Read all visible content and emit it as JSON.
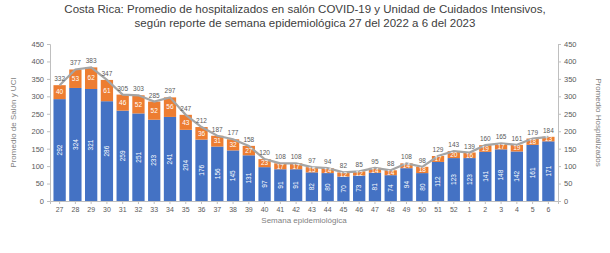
{
  "chart_data": {
    "type": "bar",
    "title": "Costa Rica: Promedio de hospitalizados en salón COVID-19 y Unidad de Cuidados Intensivos,\nsegún reporte de semana epidemiológica 27 del 2022 a 6 del 2023",
    "x_label": "Semana epidemiológica",
    "y_label": "Promedio de Salón y UCI",
    "y2_label": "Promedio Hospitalizados",
    "categories": [
      "27",
      "28",
      "29",
      "30",
      "31",
      "32",
      "33",
      "34",
      "35",
      "36",
      "37",
      "38",
      "39",
      "40",
      "41",
      "42",
      "43",
      "44",
      "45",
      "46",
      "47",
      "48",
      "49",
      "50",
      "51",
      "52",
      "1",
      "2",
      "3",
      "4",
      "5",
      "6"
    ],
    "stacked": true,
    "data_labels": true,
    "grid": false,
    "ylim": [
      0,
      450
    ],
    "yticks": [
      0,
      50,
      100,
      150,
      200,
      250,
      300,
      350,
      400,
      450
    ],
    "y2lim": [
      0,
      450
    ],
    "y2ticks": [
      0,
      50,
      100,
      150,
      200,
      250,
      300,
      350,
      400,
      450
    ],
    "series": [
      {
        "type": "bar",
        "color": "#4472c4",
        "values": [
          292,
          324,
          321,
          286,
          259,
          251,
          233,
          241,
          204,
          176,
          156,
          145,
          131,
          97,
          91,
          91,
          82,
          80,
          70,
          73,
          81,
          74,
          94,
          80,
          112,
          123,
          123,
          141,
          148,
          142,
          161,
          171
        ]
      },
      {
        "type": "bar",
        "color": "#ed7d31",
        "values": [
          40,
          53,
          62,
          61,
          46,
          52,
          52,
          56,
          43,
          36,
          31,
          32,
          27,
          23,
          17,
          17,
          15,
          14,
          12,
          12,
          14,
          14,
          14,
          18,
          17,
          20,
          16,
          19,
          17,
          19,
          18,
          13
        ]
      },
      {
        "type": "line",
        "axis": "y2",
        "color": "#a5a5a5",
        "marker": "none",
        "line_style": "solid",
        "values": [
          332,
          377,
          383,
          347,
          305,
          303,
          285,
          297,
          247,
          212,
          187,
          177,
          158,
          120,
          108,
          108,
          97,
          94,
          82,
          85,
          95,
          88,
          108,
          98,
          129,
          143,
          139,
          160,
          165,
          161,
          179,
          184
        ]
      }
    ]
  }
}
